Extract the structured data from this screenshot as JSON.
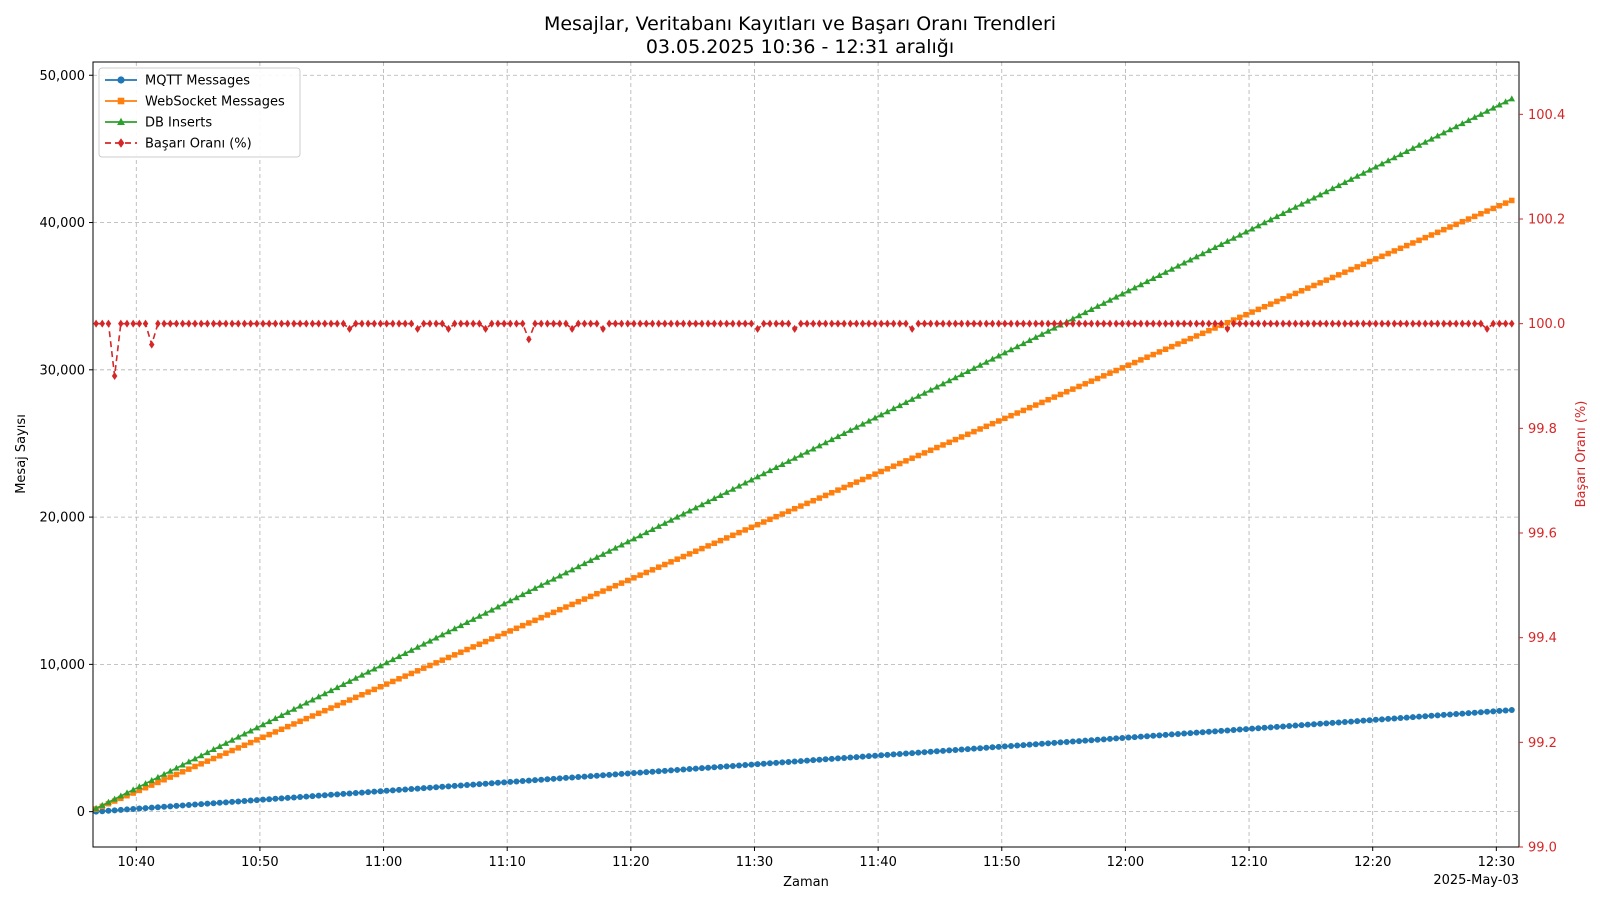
{
  "chart_data": {
    "type": "line",
    "title": "Mesajlar, Veritabanı Kayıtları ve Başarı Oranı Trendleri",
    "subtitle": "03.05.2025 10:36 - 12:31 aralığı",
    "xlabel": "Zaman",
    "ylabel": "Mesaj Sayısı",
    "ylabel_right": "Başarı Oranı (%)",
    "date_label": "2025-May-03",
    "x_range": [
      "10:36:30",
      "12:31:50"
    ],
    "x_ticks": [
      "10:40",
      "10:50",
      "11:00",
      "11:10",
      "11:20",
      "11:30",
      "11:40",
      "11:50",
      "12:00",
      "12:10",
      "12:20",
      "12:30"
    ],
    "ylim": [
      -2400,
      50900
    ],
    "y_ticks": [
      0,
      10000,
      20000,
      30000,
      40000,
      50000
    ],
    "y_tick_labels": [
      "0",
      "10,000",
      "20,000",
      "30,000",
      "40,000",
      "50,000"
    ],
    "ylim_right": [
      99.0,
      100.5
    ],
    "y_right_ticks": [
      99.0,
      99.2,
      99.4,
      99.6,
      99.8,
      100.0,
      100.2,
      100.4
    ],
    "y_right_tick_labels": [
      "99.0",
      "99.2",
      "99.4",
      "99.6",
      "99.8",
      "100.0",
      "100.2",
      "100.4"
    ],
    "grid": true,
    "legend_position": "top-left",
    "sampling": {
      "start": "10:36:45",
      "step_seconds": 30,
      "points": 230
    },
    "series": [
      {
        "name": "MQTT Messages",
        "axis": "left",
        "color": "#1f77b4",
        "marker": "circle",
        "style": "solid",
        "start": 0,
        "end": 6900
      },
      {
        "name": "WebSocket Messages",
        "axis": "left",
        "color": "#ff7f0e",
        "marker": "square",
        "style": "solid",
        "start": 180,
        "end": 41500
      },
      {
        "name": "DB Inserts",
        "axis": "left",
        "color": "#2ca02c",
        "marker": "triangle",
        "style": "solid",
        "start": 220,
        "end": 48400
      },
      {
        "name": "Başarı Oranı (%)",
        "axis": "right",
        "color": "#d62728",
        "marker": "diamond",
        "style": "dashed",
        "default": 100.0,
        "deviations": [
          {
            "index": 3,
            "value": 99.9
          },
          {
            "index": 9,
            "value": 99.96
          },
          {
            "index": 41,
            "value": 99.99
          },
          {
            "index": 52,
            "value": 99.99
          },
          {
            "index": 57,
            "value": 99.99
          },
          {
            "index": 63,
            "value": 99.99
          },
          {
            "index": 70,
            "value": 99.97
          },
          {
            "index": 77,
            "value": 99.99
          },
          {
            "index": 82,
            "value": 99.99
          },
          {
            "index": 107,
            "value": 99.99
          },
          {
            "index": 113,
            "value": 99.99
          },
          {
            "index": 132,
            "value": 99.99
          },
          {
            "index": 183,
            "value": 99.99
          },
          {
            "index": 225,
            "value": 99.99
          }
        ]
      }
    ]
  }
}
